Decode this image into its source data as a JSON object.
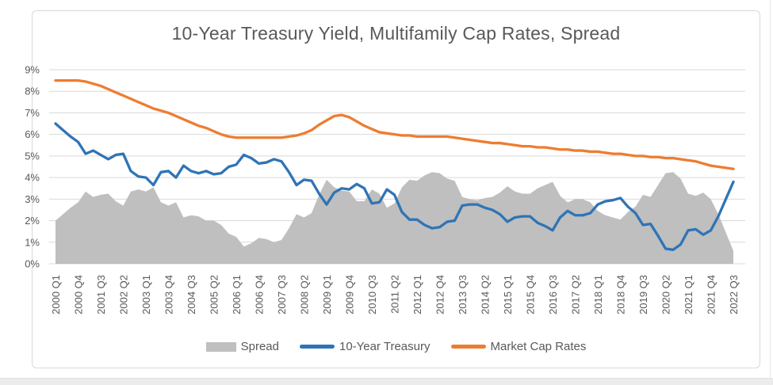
{
  "page": {
    "background": "#ffffff",
    "footer_bar_color": "#ececec"
  },
  "chart_data": {
    "type": "combo",
    "subtypes": [
      "area",
      "line",
      "line"
    ],
    "title": "10-Year Treasury Yield, Multifamily Cap Rates, Spread",
    "xlabel": "",
    "ylabel": "",
    "ylim": [
      0,
      9
    ],
    "grid": "horizontal",
    "grid_color": "#d9d9d9",
    "text_color": "#595959",
    "legend_position": "bottom",
    "y_axis": {
      "ticks": [
        "9%",
        "8%",
        "7%",
        "6%",
        "5%",
        "4%",
        "3%",
        "2%",
        "1%",
        "0%"
      ]
    },
    "x_axis": {
      "freq": "quarterly",
      "start": "2000 Q1",
      "end": "2022 Q3",
      "points": 91,
      "tick_every": 3,
      "tick_labels": [
        "2000 Q1",
        "2000 Q4",
        "2001 Q3",
        "2002 Q2",
        "2003 Q1",
        "2003 Q4",
        "2004 Q3",
        "2005 Q2",
        "2006 Q1",
        "2006 Q4",
        "2007 Q3",
        "2008 Q2",
        "2009 Q1",
        "2009 Q4",
        "2010 Q3",
        "2011 Q2",
        "2012 Q1",
        "2012 Q4",
        "2013 Q3",
        "2014 Q2",
        "2015 Q1",
        "2015 Q4",
        "2016 Q3",
        "2017 Q2",
        "2018 Q1",
        "2018 Q4",
        "2019 Q3",
        "2020 Q2",
        "2021 Q1",
        "2021 Q4",
        "2022 Q3"
      ]
    },
    "series": [
      {
        "name": "Spread",
        "type": "area",
        "color": "#bfbfbf",
        "unit": "%",
        "values": [
          2.0,
          2.3,
          2.6,
          2.85,
          3.35,
          3.1,
          3.2,
          3.25,
          2.9,
          2.7,
          3.35,
          3.45,
          3.35,
          3.55,
          2.85,
          2.7,
          2.85,
          2.15,
          2.25,
          2.2,
          2.0,
          2.0,
          1.8,
          1.4,
          1.25,
          0.8,
          0.95,
          1.2,
          1.15,
          1.0,
          1.1,
          1.65,
          2.3,
          2.15,
          2.35,
          3.2,
          3.9,
          3.55,
          3.4,
          3.35,
          2.9,
          2.9,
          3.45,
          3.25,
          2.6,
          2.8,
          3.55,
          3.9,
          3.85,
          4.1,
          4.25,
          4.2,
          3.95,
          3.85,
          3.1,
          3.0,
          2.95,
          3.05,
          3.1,
          3.3,
          3.6,
          3.35,
          3.25,
          3.25,
          3.5,
          3.65,
          3.8,
          3.15,
          2.85,
          3.0,
          3.0,
          2.85,
          2.45,
          2.25,
          2.15,
          2.05,
          2.4,
          2.65,
          3.2,
          3.1,
          3.65,
          4.2,
          4.25,
          3.95,
          3.25,
          3.15,
          3.3,
          3.0,
          2.3,
          1.45,
          0.6
        ]
      },
      {
        "name": "10-Year Treasury",
        "type": "line",
        "color": "#2f74b6",
        "unit": "%",
        "values": [
          6.5,
          6.2,
          5.9,
          5.65,
          5.1,
          5.25,
          5.05,
          4.85,
          5.05,
          5.1,
          4.3,
          4.05,
          4.0,
          3.65,
          4.25,
          4.3,
          4.0,
          4.55,
          4.3,
          4.2,
          4.3,
          4.15,
          4.2,
          4.5,
          4.6,
          5.05,
          4.9,
          4.65,
          4.7,
          4.85,
          4.75,
          4.25,
          3.65,
          3.9,
          3.85,
          3.25,
          2.75,
          3.3,
          3.5,
          3.45,
          3.7,
          3.5,
          2.8,
          2.85,
          3.45,
          3.2,
          2.4,
          2.05,
          2.05,
          1.8,
          1.65,
          1.7,
          1.95,
          2.0,
          2.7,
          2.75,
          2.75,
          2.6,
          2.5,
          2.3,
          1.95,
          2.15,
          2.2,
          2.2,
          1.9,
          1.75,
          1.55,
          2.15,
          2.45,
          2.25,
          2.25,
          2.35,
          2.75,
          2.9,
          2.95,
          3.05,
          2.65,
          2.35,
          1.8,
          1.85,
          1.3,
          0.7,
          0.65,
          0.9,
          1.55,
          1.6,
          1.35,
          1.55,
          2.2,
          3.0,
          3.8
        ]
      },
      {
        "name": "Market Cap Rates",
        "type": "line",
        "color": "#ed7d31",
        "unit": "%",
        "values": [
          8.5,
          8.5,
          8.5,
          8.5,
          8.45,
          8.35,
          8.25,
          8.1,
          7.95,
          7.8,
          7.65,
          7.5,
          7.35,
          7.2,
          7.1,
          7.0,
          6.85,
          6.7,
          6.55,
          6.4,
          6.3,
          6.15,
          6.0,
          5.9,
          5.85,
          5.85,
          5.85,
          5.85,
          5.85,
          5.85,
          5.85,
          5.9,
          5.95,
          6.05,
          6.2,
          6.45,
          6.65,
          6.85,
          6.9,
          6.8,
          6.6,
          6.4,
          6.25,
          6.1,
          6.05,
          6.0,
          5.95,
          5.95,
          5.9,
          5.9,
          5.9,
          5.9,
          5.9,
          5.85,
          5.8,
          5.75,
          5.7,
          5.65,
          5.6,
          5.6,
          5.55,
          5.5,
          5.45,
          5.45,
          5.4,
          5.4,
          5.35,
          5.3,
          5.3,
          5.25,
          5.25,
          5.2,
          5.2,
          5.15,
          5.1,
          5.1,
          5.05,
          5.0,
          5.0,
          4.95,
          4.95,
          4.9,
          4.9,
          4.85,
          4.8,
          4.75,
          4.65,
          4.55,
          4.5,
          4.45,
          4.4
        ]
      }
    ]
  }
}
